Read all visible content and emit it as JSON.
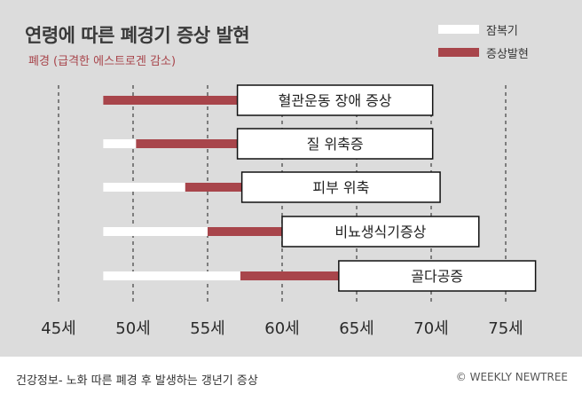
{
  "title": "연령에 따른 폐경기 증상 발현",
  "subtitle": "폐경 (급격한 에스트로겐 감소)",
  "footer": {
    "left": "건강정보-  노화 따른 폐경 후 발생하는 갱년기 증상",
    "right": "© WEEKLY NEWTREE"
  },
  "colors": {
    "background": "#dcdcdc",
    "recovery": "#ffffff",
    "onset": "#a8454b",
    "grid": "#666666"
  },
  "chart_data": {
    "type": "bar",
    "orientation": "horizontal",
    "stacked": true,
    "title": "연령에 따른 폐경기 증상 발현",
    "subtitle": "폐경 (급격한 에스트로겐 감소)",
    "xlabel": "",
    "ylabel": "",
    "xlim": [
      45,
      75
    ],
    "xticks": [
      45,
      50,
      55,
      60,
      65,
      70,
      75
    ],
    "xtick_labels": [
      "45세",
      "50세",
      "55세",
      "60세",
      "65세",
      "70세",
      "75세"
    ],
    "grid": "vertical dashed",
    "legend_position": "top-right",
    "legend": [
      {
        "name": "잠복기",
        "color": "#ffffff"
      },
      {
        "name": "증상발현",
        "color": "#a8454b"
      }
    ],
    "categories": [
      "혈관운동 장애 증상",
      "질 위축증",
      "피부 위축",
      "비뇨생식기증상",
      "골다공증"
    ],
    "series": [
      {
        "name": "잠복기",
        "color": "#ffffff",
        "ranges": [
          [
            48,
            48
          ],
          [
            48,
            50.2
          ],
          [
            48,
            53.5
          ],
          [
            48,
            55
          ],
          [
            48,
            57.2
          ]
        ]
      },
      {
        "name": "증상발현",
        "color": "#a8454b",
        "ranges": [
          [
            48,
            57
          ],
          [
            50.2,
            57
          ],
          [
            53.5,
            57.3
          ],
          [
            55,
            60
          ],
          [
            57.2,
            63.8
          ]
        ]
      }
    ],
    "box_end": [
      70.1,
      70.1,
      70.6,
      73.2,
      77
    ]
  }
}
